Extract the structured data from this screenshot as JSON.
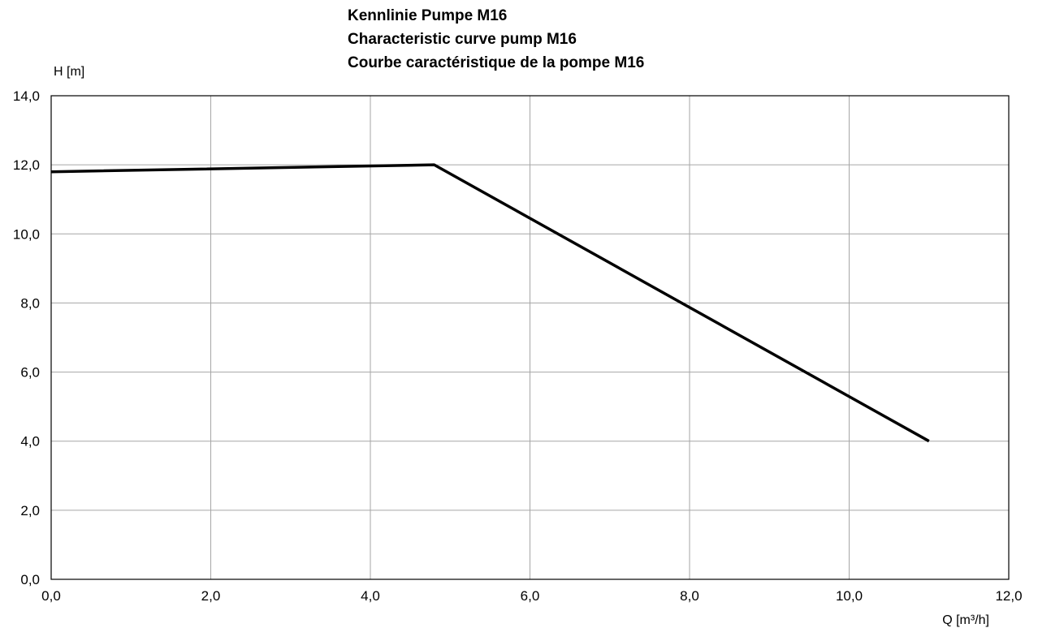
{
  "chart_data": {
    "type": "line",
    "title_lines": [
      "Kennlinie Pumpe M16",
      "Characteristic curve pump M16",
      "Courbe caractéristique de la pompe M16"
    ],
    "xlabel": "Q [m³/h]",
    "ylabel": "H [m]",
    "xlim": [
      0,
      12
    ],
    "ylim": [
      0,
      14
    ],
    "x_ticks": [
      0,
      2,
      4,
      6,
      8,
      10,
      12
    ],
    "y_ticks": [
      0,
      2,
      4,
      6,
      8,
      10,
      12,
      14
    ],
    "x_tick_labels": [
      "0,0",
      "2,0",
      "4,0",
      "6,0",
      "8,0",
      "10,0",
      "12,0"
    ],
    "y_tick_labels": [
      "0,0",
      "2,0",
      "4,0",
      "6,0",
      "8,0",
      "10,0",
      "12,0",
      "14,0"
    ],
    "grid": true,
    "series": [
      {
        "x": [
          0.0,
          4.8,
          11.0
        ],
        "y": [
          11.8,
          12.0,
          4.0
        ]
      }
    ],
    "colors": {
      "line": "#000000",
      "grid": "#a6a6a6",
      "frame": "#000000"
    }
  }
}
